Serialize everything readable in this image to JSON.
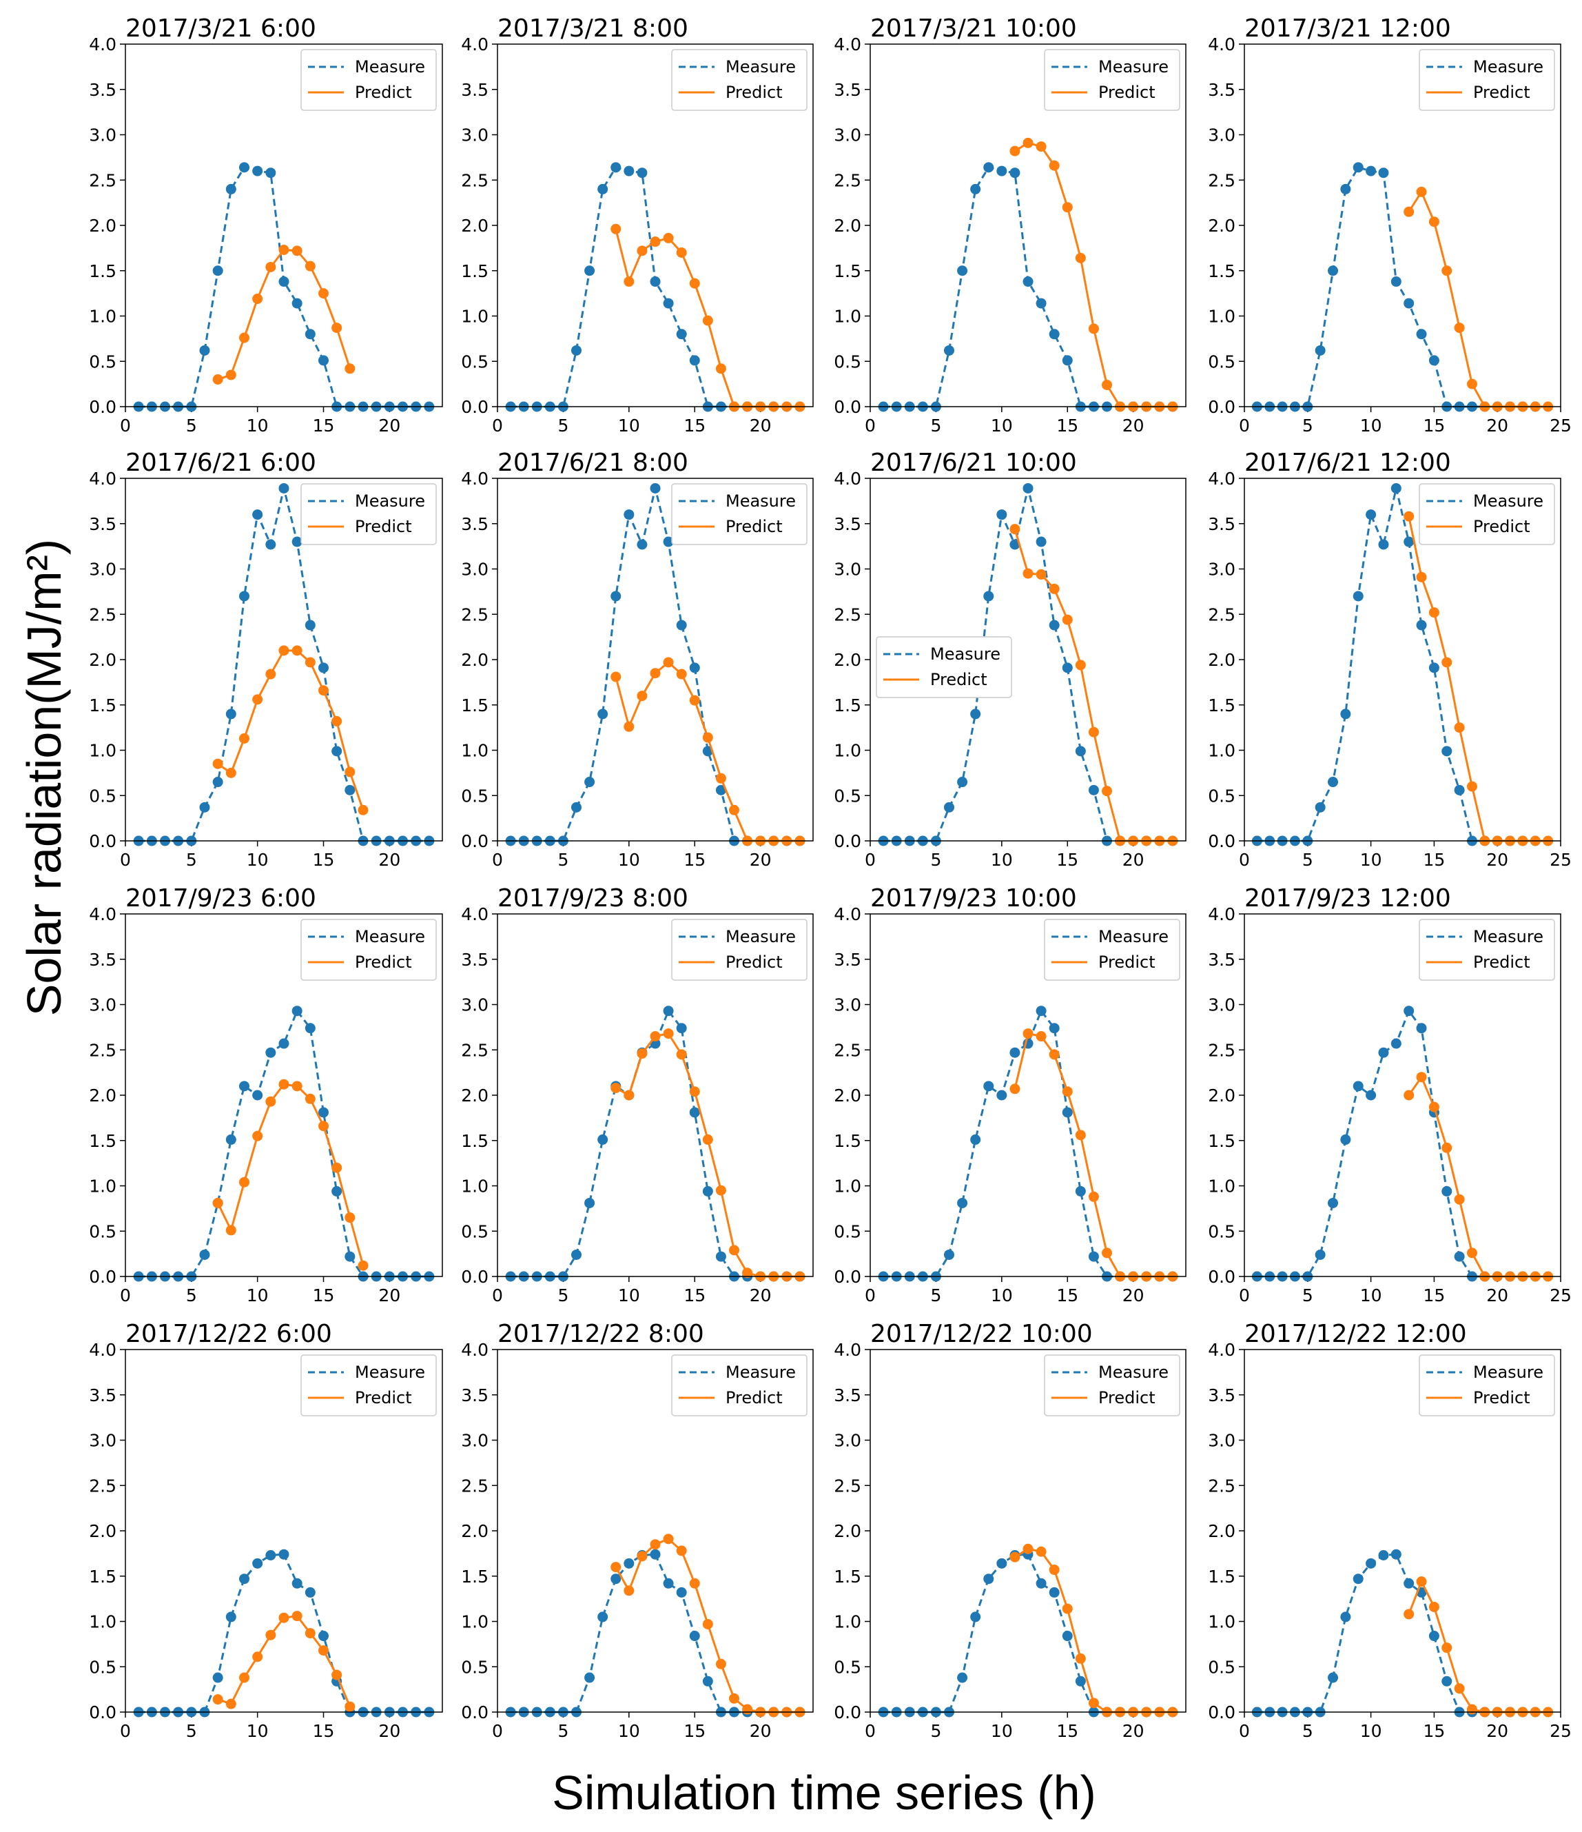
{
  "chart_data": {
    "type": "line",
    "ylabel": "Solar radiation(MJ/m²)",
    "xlabel": "Simulation time series (h)",
    "ylim": [
      0,
      4.0
    ],
    "yticks": [
      "0.0",
      "0.5",
      "1.0",
      "1.5",
      "2.0",
      "2.5",
      "3.0",
      "3.5",
      "4.0"
    ],
    "legend": [
      "Measure",
      "Predict"
    ],
    "colors": {
      "measure": "#1f77b4",
      "predict": "#ff7f0e"
    },
    "panels": [
      {
        "title": "2017/3/21 6:00",
        "xlim": [
          0,
          24
        ],
        "xticks": [
          "0",
          "5",
          "10",
          "15",
          "20"
        ],
        "legend_pos": "top-right",
        "measure": [
          0,
          0,
          0,
          0,
          0,
          0.62,
          1.5,
          2.4,
          2.64,
          2.6,
          2.58,
          1.38,
          1.14,
          0.8,
          0.51,
          0,
          0,
          0,
          0,
          0,
          0,
          0,
          0
        ],
        "predict_x": [
          7,
          8,
          9,
          10,
          11,
          12,
          13,
          14,
          15,
          16,
          17
        ],
        "predict": [
          0.3,
          0.35,
          0.76,
          1.19,
          1.54,
          1.73,
          1.72,
          1.55,
          1.25,
          0.87,
          0.42
        ]
      },
      {
        "title": "2017/3/21 8:00",
        "xlim": [
          0,
          24
        ],
        "xticks": [
          "0",
          "5",
          "10",
          "15",
          "20"
        ],
        "legend_pos": "top-right",
        "measure": [
          0,
          0,
          0,
          0,
          0,
          0.62,
          1.5,
          2.4,
          2.64,
          2.6,
          2.58,
          1.38,
          1.14,
          0.8,
          0.51,
          0,
          0,
          0,
          0,
          0,
          0,
          0,
          0
        ],
        "predict_x": [
          9,
          10,
          11,
          12,
          13,
          14,
          15,
          16,
          17,
          18,
          19,
          20,
          21,
          22,
          23
        ],
        "predict": [
          1.96,
          1.38,
          1.72,
          1.82,
          1.86,
          1.7,
          1.36,
          0.95,
          0.42,
          0,
          0,
          0,
          0,
          0,
          0
        ]
      },
      {
        "title": "2017/3/21 10:00",
        "xlim": [
          0,
          24
        ],
        "xticks": [
          "0",
          "5",
          "10",
          "15",
          "20"
        ],
        "legend_pos": "top-right",
        "measure": [
          0,
          0,
          0,
          0,
          0,
          0.62,
          1.5,
          2.4,
          2.64,
          2.6,
          2.58,
          1.38,
          1.14,
          0.8,
          0.51,
          0,
          0,
          0,
          0,
          0,
          0,
          0,
          0
        ],
        "predict_x": [
          11,
          12,
          13,
          14,
          15,
          16,
          17,
          18,
          19,
          20,
          21,
          22,
          23
        ],
        "predict": [
          2.82,
          2.91,
          2.87,
          2.66,
          2.2,
          1.64,
          0.86,
          0.24,
          0,
          0,
          0,
          0,
          0
        ]
      },
      {
        "title": "2017/3/21 12:00",
        "xlim": [
          0,
          25
        ],
        "xticks": [
          "0",
          "5",
          "10",
          "15",
          "20",
          "25"
        ],
        "legend_pos": "top-right",
        "measure": [
          0,
          0,
          0,
          0,
          0,
          0.62,
          1.5,
          2.4,
          2.64,
          2.6,
          2.58,
          1.38,
          1.14,
          0.8,
          0.51,
          0,
          0,
          0,
          0,
          0,
          0,
          0,
          0
        ],
        "predict_x": [
          13,
          14,
          15,
          16,
          17,
          18,
          19,
          20,
          21,
          22,
          23,
          24
        ],
        "predict": [
          2.15,
          2.37,
          2.04,
          1.5,
          0.87,
          0.25,
          0,
          0,
          0,
          0,
          0,
          0
        ]
      },
      {
        "title": "2017/6/21 6:00",
        "xlim": [
          0,
          24
        ],
        "xticks": [
          "0",
          "5",
          "10",
          "15",
          "20"
        ],
        "legend_pos": "top-right",
        "measure": [
          0,
          0,
          0,
          0,
          0,
          0.37,
          0.65,
          1.4,
          2.7,
          3.6,
          3.27,
          3.89,
          3.3,
          2.38,
          1.91,
          0.99,
          0.56,
          0,
          0,
          0,
          0,
          0,
          0
        ],
        "predict_x": [
          7,
          8,
          9,
          10,
          11,
          12,
          13,
          14,
          15,
          16,
          17,
          18
        ],
        "predict": [
          0.85,
          0.75,
          1.13,
          1.56,
          1.84,
          2.1,
          2.1,
          1.97,
          1.66,
          1.32,
          0.76,
          0.34
        ]
      },
      {
        "title": "2017/6/21 8:00",
        "xlim": [
          0,
          24
        ],
        "xticks": [
          "0",
          "5",
          "10",
          "15",
          "20"
        ],
        "legend_pos": "top-right",
        "measure": [
          0,
          0,
          0,
          0,
          0,
          0.37,
          0.65,
          1.4,
          2.7,
          3.6,
          3.27,
          3.89,
          3.3,
          2.38,
          1.91,
          0.99,
          0.56,
          0,
          0,
          0,
          0,
          0,
          0
        ],
        "predict_x": [
          9,
          10,
          11,
          12,
          13,
          14,
          15,
          16,
          17,
          18,
          19,
          20,
          21,
          22,
          23
        ],
        "predict": [
          1.81,
          1.26,
          1.6,
          1.85,
          1.97,
          1.84,
          1.55,
          1.14,
          0.69,
          0.34,
          0,
          0,
          0,
          0,
          0
        ]
      },
      {
        "title": "2017/6/21 10:00",
        "xlim": [
          0,
          24
        ],
        "xticks": [
          "0",
          "5",
          "10",
          "15",
          "20"
        ],
        "legend_pos": "center-left",
        "measure": [
          0,
          0,
          0,
          0,
          0,
          0.37,
          0.65,
          1.4,
          2.7,
          3.6,
          3.27,
          3.89,
          3.3,
          2.38,
          1.91,
          0.99,
          0.56,
          0,
          0,
          0,
          0,
          0,
          0
        ],
        "predict_x": [
          11,
          12,
          13,
          14,
          15,
          16,
          17,
          18,
          19,
          20,
          21,
          22,
          23
        ],
        "predict": [
          3.44,
          2.95,
          2.94,
          2.78,
          2.44,
          1.94,
          1.2,
          0.55,
          0,
          0,
          0,
          0,
          0
        ]
      },
      {
        "title": "2017/6/21 12:00",
        "xlim": [
          0,
          25
        ],
        "xticks": [
          "0",
          "5",
          "10",
          "15",
          "20",
          "25"
        ],
        "legend_pos": "top-right",
        "measure": [
          0,
          0,
          0,
          0,
          0,
          0.37,
          0.65,
          1.4,
          2.7,
          3.6,
          3.27,
          3.89,
          3.3,
          2.38,
          1.91,
          0.99,
          0.56,
          0,
          0,
          0,
          0,
          0,
          0
        ],
        "predict_x": [
          13,
          14,
          15,
          16,
          17,
          18,
          19,
          20,
          21,
          22,
          23,
          24
        ],
        "predict": [
          3.58,
          2.91,
          2.52,
          1.97,
          1.25,
          0.6,
          0,
          0,
          0,
          0,
          0,
          0
        ]
      },
      {
        "title": "2017/9/23 6:00",
        "xlim": [
          0,
          24
        ],
        "xticks": [
          "0",
          "5",
          "10",
          "15",
          "20"
        ],
        "legend_pos": "top-right",
        "measure": [
          0,
          0,
          0,
          0,
          0,
          0.24,
          0.81,
          1.51,
          2.1,
          2.0,
          2.47,
          2.57,
          2.93,
          2.74,
          1.81,
          0.94,
          0.22,
          0,
          0,
          0,
          0,
          0,
          0
        ],
        "predict_x": [
          7,
          8,
          9,
          10,
          11,
          12,
          13,
          14,
          15,
          16,
          17,
          18
        ],
        "predict": [
          0.81,
          0.51,
          1.04,
          1.55,
          1.93,
          2.12,
          2.1,
          1.96,
          1.66,
          1.2,
          0.65,
          0.12
        ]
      },
      {
        "title": "2017/9/23 8:00",
        "xlim": [
          0,
          24
        ],
        "xticks": [
          "0",
          "5",
          "10",
          "15",
          "20"
        ],
        "legend_pos": "top-right",
        "measure": [
          0,
          0,
          0,
          0,
          0,
          0.24,
          0.81,
          1.51,
          2.1,
          2.0,
          2.47,
          2.57,
          2.93,
          2.74,
          1.81,
          0.94,
          0.22,
          0,
          0,
          0,
          0,
          0,
          0
        ],
        "predict_x": [
          9,
          10,
          11,
          12,
          13,
          14,
          15,
          16,
          17,
          18,
          19,
          20,
          21,
          22,
          23
        ],
        "predict": [
          2.08,
          2.0,
          2.46,
          2.65,
          2.68,
          2.45,
          2.04,
          1.51,
          0.95,
          0.29,
          0.04,
          0,
          0,
          0,
          0
        ]
      },
      {
        "title": "2017/9/23 10:00",
        "xlim": [
          0,
          24
        ],
        "xticks": [
          "0",
          "5",
          "10",
          "15",
          "20"
        ],
        "legend_pos": "top-right",
        "measure": [
          0,
          0,
          0,
          0,
          0,
          0.24,
          0.81,
          1.51,
          2.1,
          2.0,
          2.47,
          2.57,
          2.93,
          2.74,
          1.81,
          0.94,
          0.22,
          0,
          0,
          0,
          0,
          0,
          0
        ],
        "predict_x": [
          11,
          12,
          13,
          14,
          15,
          16,
          17,
          18,
          19,
          20,
          21,
          22,
          23
        ],
        "predict": [
          2.07,
          2.68,
          2.65,
          2.45,
          2.04,
          1.56,
          0.88,
          0.26,
          0,
          0,
          0,
          0,
          0
        ]
      },
      {
        "title": "2017/9/23 12:00",
        "xlim": [
          0,
          25
        ],
        "xticks": [
          "0",
          "5",
          "10",
          "15",
          "20",
          "25"
        ],
        "legend_pos": "top-right",
        "measure": [
          0,
          0,
          0,
          0,
          0,
          0.24,
          0.81,
          1.51,
          2.1,
          2.0,
          2.47,
          2.57,
          2.93,
          2.74,
          1.81,
          0.94,
          0.22,
          0,
          0,
          0,
          0,
          0,
          0
        ],
        "predict_x": [
          13,
          14,
          15,
          16,
          17,
          18,
          19,
          20,
          21,
          22,
          23,
          24
        ],
        "predict": [
          2.0,
          2.2,
          1.87,
          1.42,
          0.85,
          0.26,
          0,
          0,
          0,
          0,
          0,
          0
        ]
      },
      {
        "title": "2017/12/22 6:00",
        "xlim": [
          0,
          24
        ],
        "xticks": [
          "0",
          "5",
          "10",
          "15",
          "20"
        ],
        "legend_pos": "top-right",
        "measure": [
          0,
          0,
          0,
          0,
          0,
          0,
          0.38,
          1.05,
          1.47,
          1.64,
          1.73,
          1.74,
          1.42,
          1.32,
          0.84,
          0.34,
          0,
          0,
          0,
          0,
          0,
          0,
          0
        ],
        "predict_x": [
          7,
          8,
          9,
          10,
          11,
          12,
          13,
          14,
          15,
          16,
          17
        ],
        "predict": [
          0.14,
          0.09,
          0.38,
          0.61,
          0.85,
          1.04,
          1.06,
          0.87,
          0.68,
          0.41,
          0.06
        ]
      },
      {
        "title": "2017/12/22 8:00",
        "xlim": [
          0,
          24
        ],
        "xticks": [
          "0",
          "5",
          "10",
          "15",
          "20"
        ],
        "legend_pos": "top-right",
        "measure": [
          0,
          0,
          0,
          0,
          0,
          0,
          0.38,
          1.05,
          1.47,
          1.64,
          1.73,
          1.74,
          1.42,
          1.32,
          0.84,
          0.34,
          0,
          0,
          0,
          0,
          0,
          0,
          0
        ],
        "predict_x": [
          9,
          10,
          11,
          12,
          13,
          14,
          15,
          16,
          17,
          18,
          19,
          20,
          21,
          22,
          23
        ],
        "predict": [
          1.6,
          1.34,
          1.72,
          1.85,
          1.91,
          1.78,
          1.42,
          0.97,
          0.53,
          0.15,
          0.03,
          0,
          0,
          0,
          0
        ]
      },
      {
        "title": "2017/12/22 10:00",
        "xlim": [
          0,
          24
        ],
        "xticks": [
          "0",
          "5",
          "10",
          "15",
          "20"
        ],
        "legend_pos": "top-right",
        "measure": [
          0,
          0,
          0,
          0,
          0,
          0,
          0.38,
          1.05,
          1.47,
          1.64,
          1.73,
          1.74,
          1.42,
          1.32,
          0.84,
          0.34,
          0,
          0,
          0,
          0,
          0,
          0,
          0
        ],
        "predict_x": [
          11,
          12,
          13,
          14,
          15,
          16,
          17,
          18,
          19,
          20,
          21,
          22,
          23
        ],
        "predict": [
          1.71,
          1.8,
          1.77,
          1.57,
          1.14,
          0.59,
          0.1,
          0,
          0,
          0,
          0,
          0,
          0
        ]
      },
      {
        "title": "2017/12/22 12:00",
        "xlim": [
          0,
          25
        ],
        "xticks": [
          "0",
          "5",
          "10",
          "15",
          "20",
          "25"
        ],
        "legend_pos": "top-right",
        "measure": [
          0,
          0,
          0,
          0,
          0,
          0,
          0.38,
          1.05,
          1.47,
          1.64,
          1.73,
          1.74,
          1.42,
          1.32,
          0.84,
          0.34,
          0,
          0,
          0,
          0,
          0,
          0,
          0
        ],
        "predict_x": [
          13,
          14,
          15,
          16,
          17,
          18,
          19,
          20,
          21,
          22,
          23,
          24
        ],
        "predict": [
          1.08,
          1.44,
          1.16,
          0.71,
          0.26,
          0.03,
          0,
          0,
          0,
          0,
          0,
          0
        ]
      }
    ]
  }
}
